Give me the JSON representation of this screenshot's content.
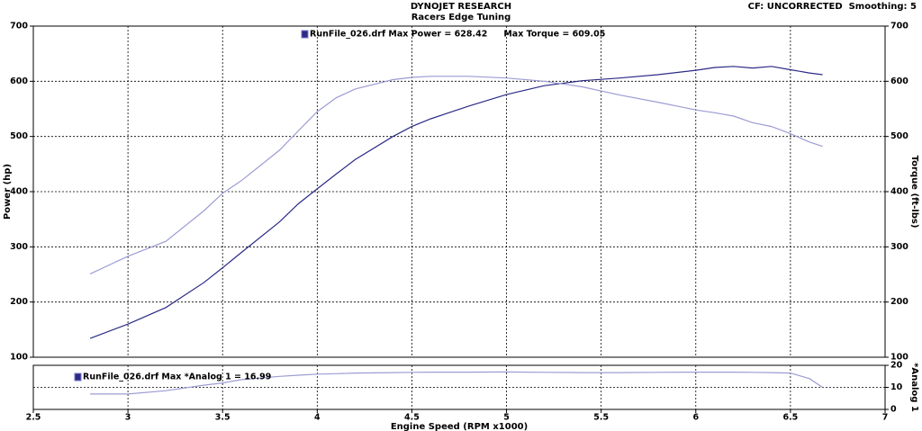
{
  "chart_data": [
    {
      "type": "line",
      "title": "DYNOJET RESEARCH",
      "subtitle": "Racers Edge Tuning",
      "annotation": "CF: UNCORRECTED  Smoothing: 5",
      "legend": [
        "RunFile_026.drf Max Power = 628.42",
        "Max Torque = 609.05"
      ],
      "ylabel": "Power (hp)",
      "y2label": "Torque (ft-lbs)",
      "grid": true,
      "x": [
        2.8,
        3.0,
        3.2,
        3.4,
        3.5,
        3.6,
        3.8,
        3.9,
        4.0,
        4.1,
        4.2,
        4.4,
        4.5,
        4.6,
        4.8,
        5.0,
        5.2,
        5.4,
        5.6,
        5.8,
        6.0,
        6.1,
        6.2,
        6.3,
        6.4,
        6.5,
        6.6,
        6.67
      ],
      "xlim": [
        2.5,
        7.0
      ],
      "xticks": [
        2.5,
        3.0,
        3.5,
        4.0,
        4.5,
        5.0,
        5.5,
        6.0,
        6.5,
        7.0
      ],
      "ylim": [
        100,
        700
      ],
      "yticks": [
        100,
        200,
        300,
        400,
        500,
        600,
        700
      ],
      "y2lim": [
        100,
        700
      ],
      "y2ticks": [
        100,
        200,
        300,
        400,
        500,
        600,
        700
      ],
      "series": [
        {
          "color": "#2b2b86",
          "values": [
            134,
            160,
            190,
            235,
            262,
            290,
            345,
            378,
            405,
            432,
            458,
            500,
            518,
            532,
            555,
            576,
            592,
            601,
            606,
            612,
            620,
            625,
            627,
            624,
            627,
            621,
            615,
            612
          ]
        },
        {
          "color": "#9c9cd4",
          "axis": "y2",
          "values": [
            251,
            283,
            310,
            365,
            397,
            420,
            475,
            510,
            545,
            570,
            586,
            603,
            607,
            609,
            609,
            606,
            600,
            590,
            575,
            562,
            548,
            543,
            537,
            525,
            518,
            505,
            490,
            482
          ]
        }
      ]
    },
    {
      "type": "line",
      "legend": [
        "RunFile_026.drf Max *Analog 1 = 16.99"
      ],
      "y2label": "*Analog 1",
      "xlabel": "Engine Speed (RPM x1000)",
      "grid": true,
      "x": [
        2.8,
        3.0,
        3.2,
        3.4,
        3.5,
        3.6,
        3.8,
        3.9,
        4.0,
        4.1,
        4.2,
        4.4,
        4.5,
        4.6,
        4.8,
        5.0,
        5.2,
        5.4,
        5.6,
        5.8,
        6.0,
        6.1,
        6.2,
        6.3,
        6.4,
        6.5,
        6.6,
        6.67
      ],
      "xlim": [
        2.5,
        7.0
      ],
      "xticks": [
        2.5,
        3.0,
        3.5,
        4.0,
        4.5,
        5.0,
        5.5,
        6.0,
        6.5,
        7.0
      ],
      "y2lim": [
        0,
        20
      ],
      "y2ticks": [
        0,
        10,
        20
      ],
      "series": [
        {
          "color": "#9c9cd4",
          "axis": "y2",
          "values": [
            7,
            7,
            8.5,
            11,
            12,
            13.5,
            15,
            15.5,
            16,
            16.2,
            16.5,
            16.7,
            16.8,
            16.9,
            16.9,
            16.99,
            16.8,
            16.7,
            16.7,
            16.8,
            16.9,
            16.9,
            16.9,
            16.8,
            16.7,
            16.5,
            14,
            10
          ]
        }
      ]
    }
  ]
}
